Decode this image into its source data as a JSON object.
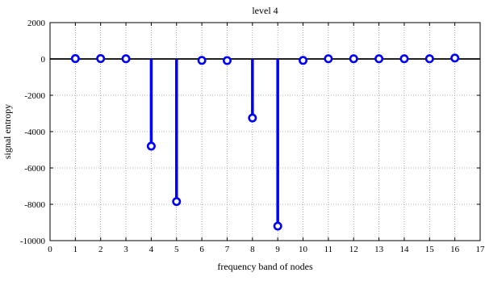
{
  "chart_data": {
    "type": "stem",
    "title": "level 4",
    "xlabel": "frequency band of nodes",
    "ylabel": "signal entropy",
    "xlim": [
      0,
      17
    ],
    "ylim": [
      -10000,
      2000
    ],
    "xticks": [
      0,
      1,
      2,
      3,
      4,
      5,
      6,
      7,
      8,
      9,
      10,
      11,
      12,
      13,
      14,
      15,
      16,
      17
    ],
    "yticks": [
      2000,
      0,
      -2000,
      -4000,
      -6000,
      -8000,
      -10000
    ],
    "grid": true,
    "series_color": "#0000ff",
    "x": [
      1,
      2,
      3,
      4,
      5,
      6,
      7,
      8,
      9,
      10,
      11,
      12,
      13,
      14,
      15,
      16
    ],
    "values": [
      20,
      20,
      10,
      -4800,
      -7850,
      -80,
      -90,
      -3250,
      -9200,
      -80,
      10,
      10,
      10,
      10,
      10,
      50
    ]
  }
}
